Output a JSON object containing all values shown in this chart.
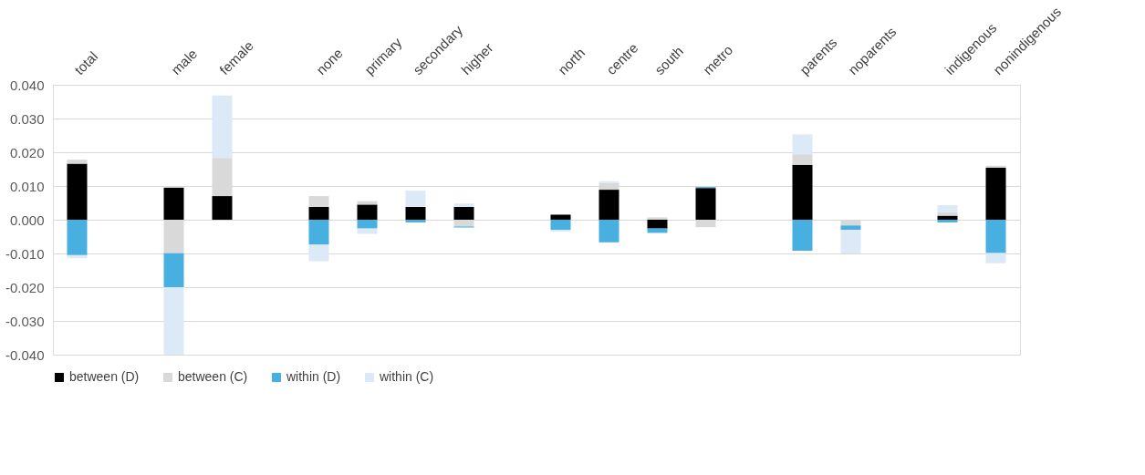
{
  "chart_data": {
    "type": "bar",
    "stacked": true,
    "categories": [
      "total",
      null,
      "male",
      "female",
      null,
      "none",
      "primary",
      "secondary",
      "higher",
      null,
      "north",
      "centre",
      "south",
      "metro",
      null,
      "parents",
      "noparents",
      null,
      "indigenous",
      "nonindigenous"
    ],
    "series": [
      {
        "name": "between (D)",
        "color": "#000000",
        "values": [
          0.0166,
          null,
          0.0095,
          0.007,
          null,
          0.0038,
          0.0045,
          0.0038,
          0.0038,
          null,
          0.0015,
          0.0089,
          -0.0026,
          0.0094,
          null,
          0.0163,
          0,
          null,
          0.0012,
          0.0154
        ]
      },
      {
        "name": "between (C)",
        "color": "#d9d9d9",
        "values": [
          0.0012,
          null,
          -0.0099,
          0.0113,
          null,
          0.0032,
          0.001,
          0,
          -0.002,
          null,
          0,
          0.002,
          0.0007,
          -0.0022,
          null,
          0.0031,
          -0.0017,
          null,
          0.001,
          0.0006
        ]
      },
      {
        "name": "within (D)",
        "color": "#47b0e0",
        "values": [
          -0.0105,
          null,
          -0.0101,
          0,
          null,
          -0.0074,
          -0.0026,
          -0.0008,
          -0.0003,
          null,
          -0.003,
          -0.0067,
          -0.0013,
          0.0003,
          null,
          -0.0092,
          -0.0013,
          null,
          -0.0008,
          -0.0099
        ]
      },
      {
        "name": "within (C)",
        "color": "#dce9f6",
        "values": [
          -0.0009,
          null,
          -0.02,
          0.0185,
          null,
          -0.0049,
          -0.0016,
          0.0048,
          0.001,
          null,
          -0.0005,
          0.0005,
          null,
          null,
          null,
          0.0059,
          -0.007,
          null,
          0.0021,
          -0.003
        ]
      }
    ],
    "ylim": [
      -0.04,
      0.04
    ],
    "yticks": [
      {
        "value": -0.04,
        "label": "-0.040"
      },
      {
        "value": -0.03,
        "label": "-0.030"
      },
      {
        "value": -0.02,
        "label": "-0.020"
      },
      {
        "value": -0.01,
        "label": "-0.010"
      },
      {
        "value": 0,
        "label": "0.000"
      },
      {
        "value": 0.01,
        "label": "0.010"
      },
      {
        "value": 0.02,
        "label": "0.020"
      },
      {
        "value": 0.03,
        "label": "0.030"
      },
      {
        "value": 0.04,
        "label": "0.040"
      }
    ],
    "grid": "y",
    "legend": "bottom"
  }
}
